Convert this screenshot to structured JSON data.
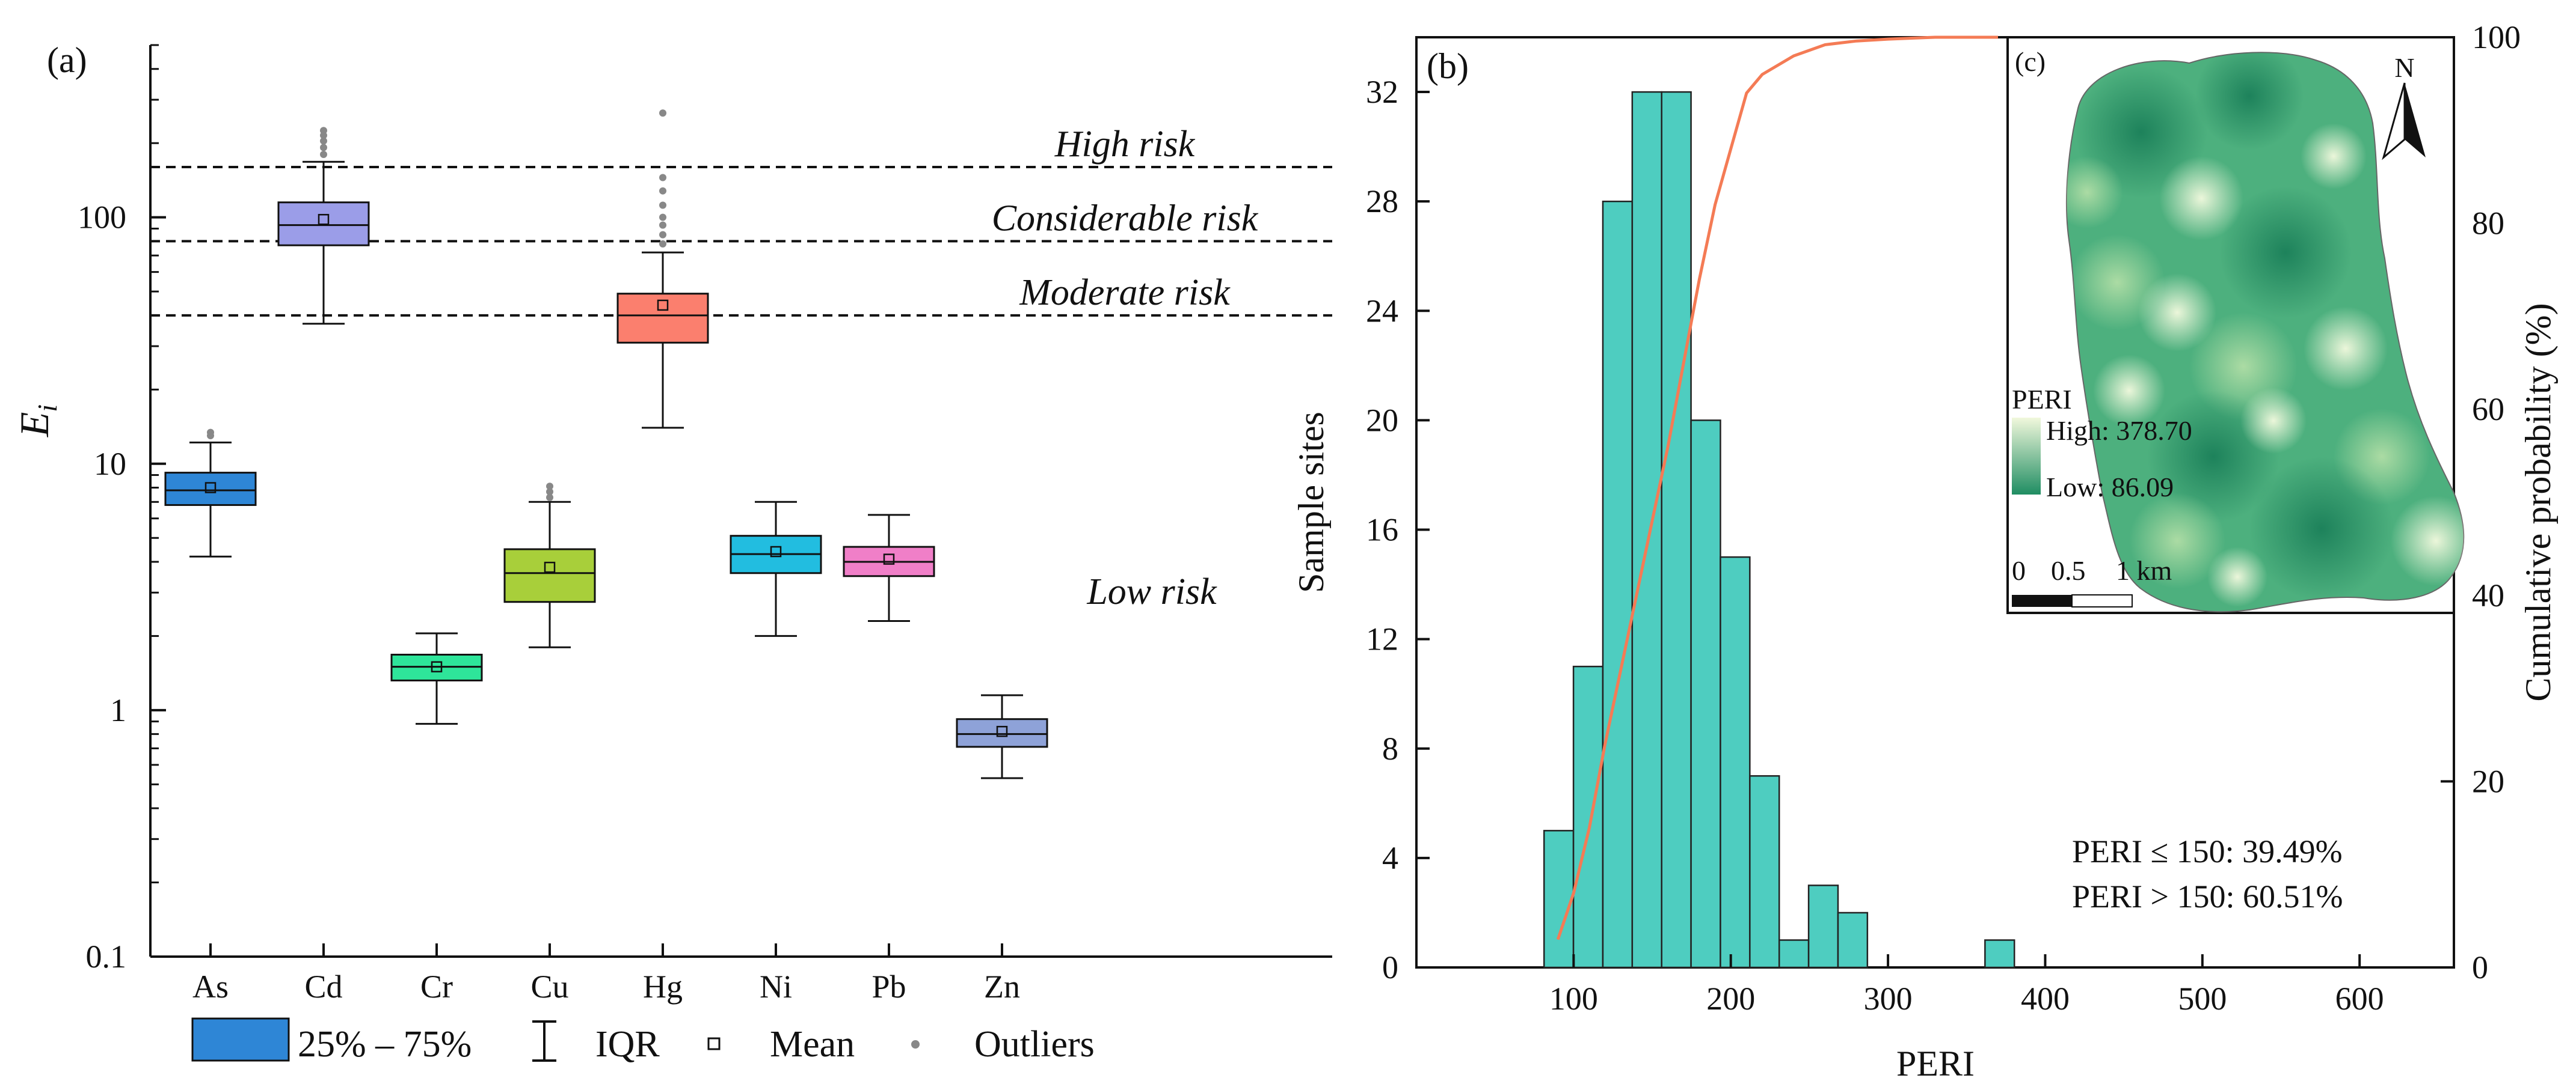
{
  "panel_a": {
    "label": "(a)",
    "ylabel": "E",
    "ylabel_sub": "i",
    "risk_lines": [
      {
        "label": "High risk",
        "value": 160
      },
      {
        "label": "Considerable risk",
        "value": 80
      },
      {
        "label": "Moderate risk",
        "value": 40
      }
    ],
    "low_risk_label": "Low risk",
    "legend": {
      "box": "25% – 75%",
      "iqr": "IQR",
      "mean": "Mean",
      "outliers": "Outliers"
    }
  },
  "panel_b": {
    "label": "(b)",
    "stats": [
      "PERI ≤ 150: 39.49%",
      "PERI > 150: 60.51%"
    ]
  },
  "panel_c": {
    "label": "(c)",
    "north": "N",
    "legend_title": "PERI",
    "high": "High: 378.70",
    "low": "Low: 86.09",
    "scale_labels": [
      "0",
      "0.5",
      "1 km"
    ]
  },
  "colors": {
    "As": "#2e86d6",
    "Cd": "#9b9de8",
    "Cr": "#2ee59a",
    "Cu": "#a8cf3a",
    "Hg": "#fb7f6e",
    "Ni": "#22bde0",
    "Pb": "#f07fc8",
    "Zn": "#8ea2d8",
    "hist": "#4ecdc0",
    "cdf": "#f47b55",
    "map_high": "#f1f8dc",
    "map_low": "#1f8d62"
  },
  "chart_data": [
    {
      "type": "box",
      "title": "",
      "xlabel": "",
      "ylabel": "Ei",
      "yscale": "log",
      "ylim": [
        0.1,
        500
      ],
      "yticks": [
        0.1,
        1,
        10,
        100
      ],
      "ytick_labels": [
        "0.1",
        "1",
        "10",
        "100"
      ],
      "categories": [
        "As",
        "Cd",
        "Cr",
        "Cu",
        "Hg",
        "Ni",
        "Pb",
        "Zn"
      ],
      "boxes": [
        {
          "name": "As",
          "whisker_low": 4.2,
          "q1": 6.8,
          "median": 7.8,
          "q3": 9.2,
          "whisker_high": 12.2,
          "mean": 8.0,
          "outliers": [
            13.0,
            13.4
          ]
        },
        {
          "name": "Cd",
          "whisker_low": 37,
          "q1": 77,
          "median": 93,
          "q3": 115,
          "whisker_high": 168,
          "mean": 98,
          "outliers": [
            180,
            192,
            204,
            215,
            225
          ]
        },
        {
          "name": "Cr",
          "whisker_low": 0.88,
          "q1": 1.32,
          "median": 1.5,
          "q3": 1.68,
          "whisker_high": 2.05,
          "mean": 1.5,
          "outliers": []
        },
        {
          "name": "Cu",
          "whisker_low": 1.8,
          "q1": 2.75,
          "median": 3.6,
          "q3": 4.5,
          "whisker_high": 7.0,
          "mean": 3.8,
          "outliers": [
            7.3,
            7.7,
            8.1
          ]
        },
        {
          "name": "Hg",
          "whisker_low": 14,
          "q1": 31,
          "median": 40,
          "q3": 49,
          "whisker_high": 72,
          "mean": 44,
          "outliers": [
            78,
            85,
            93,
            100,
            112,
            128,
            145,
            265
          ]
        },
        {
          "name": "Ni",
          "whisker_low": 2.0,
          "q1": 3.6,
          "median": 4.3,
          "q3": 5.1,
          "whisker_high": 7.0,
          "mean": 4.4,
          "outliers": []
        },
        {
          "name": "Pb",
          "whisker_low": 2.3,
          "q1": 3.5,
          "median": 4.0,
          "q3": 4.6,
          "whisker_high": 6.2,
          "mean": 4.1,
          "outliers": []
        },
        {
          "name": "Zn",
          "whisker_low": 0.53,
          "q1": 0.71,
          "median": 0.8,
          "q3": 0.92,
          "whisker_high": 1.15,
          "mean": 0.82,
          "outliers": []
        }
      ]
    },
    {
      "type": "bar",
      "subtype": "histogram_with_cumulative_line",
      "title": "",
      "xlabel": "PERI",
      "ylabel": "Sample sites",
      "y2label": "Cumulative probability (%)",
      "xlim": [
        0,
        660
      ],
      "ylim": [
        0,
        34
      ],
      "y2lim": [
        0,
        100
      ],
      "xticks": [
        100,
        200,
        300,
        400,
        500,
        600
      ],
      "yticks": [
        0,
        4,
        8,
        12,
        16,
        20,
        24,
        28,
        32
      ],
      "y2ticks": [
        0,
        20,
        40,
        60,
        80,
        100
      ],
      "bin_width": 18.7,
      "bin_starts": [
        81.2,
        99.9,
        118.6,
        137.3,
        156.0,
        174.7,
        193.4,
        212.1,
        230.8,
        249.5,
        268.2,
        286.9,
        305.6,
        324.3,
        343.0,
        361.7
      ],
      "counts": [
        5,
        11,
        28,
        32,
        32,
        20,
        15,
        7,
        1,
        3,
        2,
        0,
        0,
        0,
        0,
        1
      ],
      "cumulative_x": [
        90,
        100,
        110,
        120,
        130,
        140,
        150,
        160,
        170,
        180,
        190,
        200,
        210,
        220,
        240,
        260,
        280,
        300,
        330,
        370
      ],
      "cumulative_y": [
        3,
        8,
        15,
        24,
        32,
        40,
        48,
        56,
        65,
        74,
        82,
        88,
        94,
        96,
        98,
        99.2,
        99.6,
        99.8,
        100,
        100
      ]
    }
  ]
}
